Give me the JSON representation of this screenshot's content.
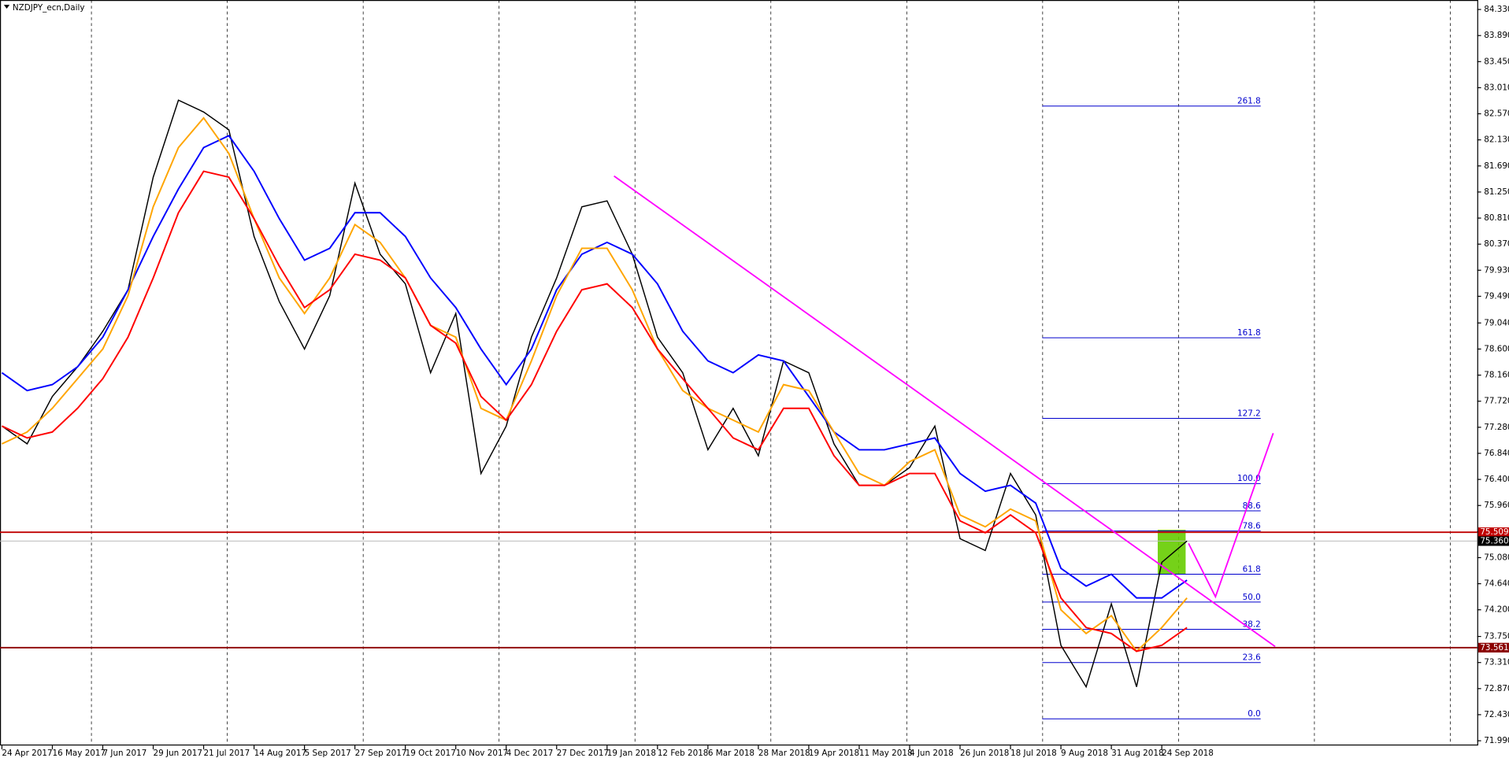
{
  "chart_data": {
    "type": "line",
    "title": "NZDJPY_ecn,Daily",
    "categories": [
      "24 Apr 2017",
      null,
      "16 May 2017",
      null,
      "7 Jun 2017",
      null,
      "29 Jun 2017",
      null,
      "21 Jul 2017",
      null,
      "14 Aug 2017",
      null,
      "5 Sep 2017",
      null,
      "27 Sep 2017",
      null,
      "19 Oct 2017",
      null,
      "10 Nov 2017",
      null,
      "4 Dec 2017",
      null,
      "27 Dec 2017",
      null,
      "19 Jan 2018",
      null,
      "12 Feb 2018",
      null,
      "6 Mar 2018",
      null,
      "28 Mar 2018",
      null,
      "19 Apr 2018",
      null,
      "11 May 2018",
      null,
      "4 Jun 2018",
      null,
      "26 Jun 2018",
      null,
      "18 Jul 2018",
      null,
      "9 Aug 2018",
      null,
      "31 Aug 2018",
      null,
      "24 Sep 2018",
      null
    ],
    "series": [
      {
        "color": "#000000",
        "values": [
          77.3,
          77.0,
          77.8,
          78.3,
          78.9,
          79.6,
          81.5,
          82.8,
          82.6,
          82.3,
          80.5,
          79.4,
          78.6,
          79.5,
          81.4,
          80.2,
          79.7,
          78.2,
          79.2,
          76.5,
          77.3,
          78.8,
          79.8,
          81.0,
          81.1,
          80.2,
          78.8,
          78.2,
          76.9,
          77.6,
          76.8,
          78.4,
          78.2,
          77.0,
          76.3,
          76.3,
          76.6,
          77.3,
          75.4,
          75.2,
          76.5,
          75.8,
          73.6,
          72.9,
          74.3,
          72.9,
          75.0,
          75.36
        ]
      },
      {
        "color": "#0000ff",
        "values": [
          78.2,
          77.9,
          78.0,
          78.3,
          78.8,
          79.6,
          80.5,
          81.3,
          82.0,
          82.2,
          81.6,
          80.8,
          80.1,
          80.3,
          80.9,
          80.9,
          80.5,
          79.8,
          79.3,
          78.6,
          78.0,
          78.6,
          79.6,
          80.2,
          80.4,
          80.2,
          79.7,
          78.9,
          78.4,
          78.2,
          78.5,
          78.4,
          77.8,
          77.2,
          76.9,
          76.9,
          77.0,
          77.1,
          76.5,
          76.2,
          76.3,
          76.0,
          74.9,
          74.6,
          74.8,
          74.4,
          74.4,
          74.7
        ]
      },
      {
        "color": "#ffa500",
        "values": [
          77.0,
          77.2,
          77.6,
          78.1,
          78.6,
          79.5,
          81.0,
          82.0,
          82.5,
          81.9,
          80.8,
          79.8,
          79.2,
          79.8,
          80.7,
          80.4,
          79.8,
          79.0,
          78.8,
          77.6,
          77.4,
          78.4,
          79.5,
          80.3,
          80.3,
          79.6,
          78.6,
          77.9,
          77.6,
          77.4,
          77.2,
          78.0,
          77.9,
          77.2,
          76.5,
          76.3,
          76.7,
          76.9,
          75.8,
          75.6,
          75.9,
          75.7,
          74.2,
          73.8,
          74.1,
          73.5,
          73.9,
          74.4
        ]
      },
      {
        "color": "#ff0000",
        "values": [
          77.3,
          77.1,
          77.2,
          77.6,
          78.1,
          78.8,
          79.8,
          80.9,
          81.6,
          81.5,
          80.8,
          80.0,
          79.3,
          79.6,
          80.2,
          80.1,
          79.8,
          79.0,
          78.7,
          77.8,
          77.4,
          78.0,
          78.9,
          79.6,
          79.7,
          79.3,
          78.6,
          78.1,
          77.6,
          77.1,
          76.9,
          77.6,
          77.6,
          76.8,
          76.3,
          76.3,
          76.5,
          76.5,
          75.7,
          75.5,
          75.8,
          75.5,
          74.4,
          73.9,
          73.8,
          73.5,
          73.6,
          73.9
        ]
      }
    ],
    "ylim": [
      71.91,
      84.49
    ],
    "yticks": [
      {
        "value": 84.33,
        "label": "84.330"
      },
      {
        "value": 83.89,
        "label": "83.890"
      },
      {
        "value": 83.45,
        "label": "83.450"
      },
      {
        "value": 83.01,
        "label": "83.010"
      },
      {
        "value": 82.57,
        "label": "82.570"
      },
      {
        "value": 82.13,
        "label": "82.130"
      },
      {
        "value": 81.69,
        "label": "81.690"
      },
      {
        "value": 81.25,
        "label": "81.250"
      },
      {
        "value": 80.81,
        "label": "80.810"
      },
      {
        "value": 80.37,
        "label": "80.370"
      },
      {
        "value": 79.93,
        "label": "79.930"
      },
      {
        "value": 79.49,
        "label": "79.490"
      },
      {
        "value": 79.04,
        "label": "79.040"
      },
      {
        "value": 78.6,
        "label": "78.600"
      },
      {
        "value": 78.16,
        "label": "78.160"
      },
      {
        "value": 77.72,
        "label": "77.720"
      },
      {
        "value": 77.28,
        "label": "77.280"
      },
      {
        "value": 76.84,
        "label": "76.840"
      },
      {
        "value": 76.4,
        "label": "76.400"
      },
      {
        "value": 75.96,
        "label": "75.960"
      },
      {
        "value": 75.52,
        "label": "75.520"
      },
      {
        "value": 75.08,
        "label": "75.080"
      },
      {
        "value": 74.64,
        "label": "74.640"
      },
      {
        "value": 74.2,
        "label": "74.200"
      },
      {
        "value": 73.75,
        "label": "73.750"
      },
      {
        "value": 73.31,
        "label": "73.310"
      },
      {
        "value": 72.87,
        "label": "72.870"
      },
      {
        "value": 72.43,
        "label": "72.430"
      },
      {
        "value": 71.99,
        "label": "71.990"
      }
    ],
    "hlines": [
      {
        "value": 75.509,
        "color": "#c00000"
      },
      {
        "value": 73.561,
        "color": "#8b0000"
      }
    ],
    "current_price": {
      "value": 75.36,
      "label": "75.360"
    },
    "fib": {
      "color": "#0000cd",
      "levels": [
        {
          "level": 261.8,
          "price": 82.7
        },
        {
          "level": 161.8,
          "price": 78.79
        },
        {
          "level": 127.2,
          "price": 77.43
        },
        {
          "level": {
            "value": 100,
            "label": "100.0"
          },
          "price": 76.33
        },
        {
          "level": 88.6,
          "price": 75.87
        },
        {
          "level": 78.6,
          "price": 75.53
        },
        {
          "level": 61.8,
          "price": 74.8
        },
        {
          "level": {
            "value": 50,
            "label": "50.0"
          },
          "price": 74.33
        },
        {
          "level": 38.2,
          "price": 73.87
        },
        {
          "level": 23.6,
          "price": 73.31
        },
        {
          "level": {
            "value": 0,
            "label": "0.0"
          },
          "price": 72.36
        }
      ]
    },
    "trendline": {
      "color": "#ff00ff",
      "values": [
        81.52,
        73.58
      ]
    },
    "projection": {
      "color": "#ff00ff",
      "values": [
        75.32,
        74.42,
        77.18
      ]
    },
    "zone": {
      "color": "#66cc00",
      "values": [
        75.55,
        74.8
      ]
    }
  }
}
